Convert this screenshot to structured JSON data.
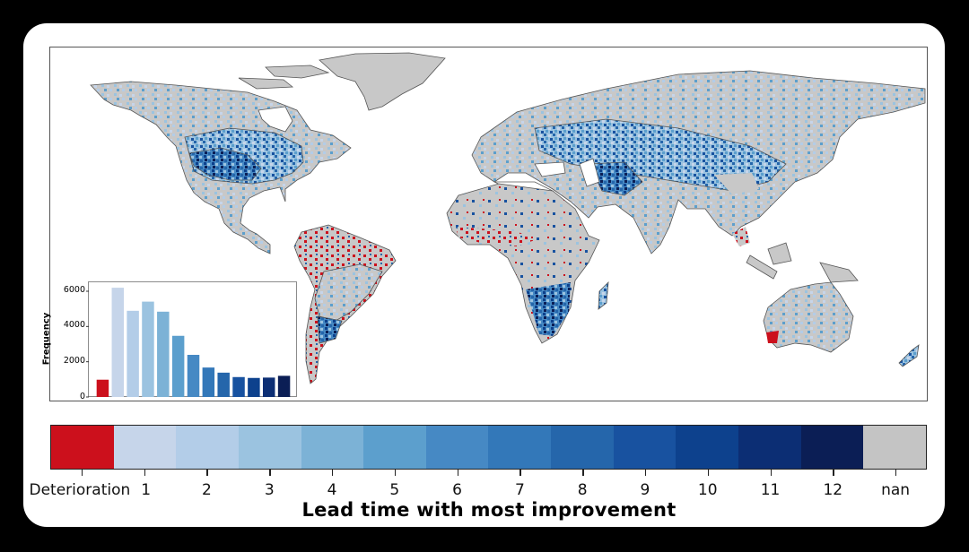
{
  "figure": {
    "colorbar_title": "Lead time with most improvement",
    "colorbar_categories": [
      "Deterioration",
      "1",
      "2",
      "3",
      "4",
      "5",
      "6",
      "7",
      "8",
      "9",
      "10",
      "11",
      "12",
      "nan"
    ],
    "colorbar_colors": [
      "#cc101c",
      "#c6d5ea",
      "#b3cde8",
      "#9bc3e0",
      "#7cb2d6",
      "#5c9fcd",
      "#4689c4",
      "#3378b9",
      "#2566ab",
      "#1852a0",
      "#0d418d",
      "#0c2e74",
      "#0b1e55",
      "#c4c4c4"
    ],
    "land_nan_color": "#c8c8c8",
    "inset": {
      "ylabel": "Frequency",
      "yticks": [
        "0",
        "2000",
        "4000",
        "6000"
      ]
    }
  },
  "chart_data": [
    {
      "type": "heatmap",
      "title": "",
      "description": "Global map of lead time with most improvement per grid cell",
      "legend": {
        "type": "categorical colorbar",
        "position": "bottom",
        "title": "Lead time with most improvement",
        "categories": [
          "Deterioration",
          "1",
          "2",
          "3",
          "4",
          "5",
          "6",
          "7",
          "8",
          "9",
          "10",
          "11",
          "12",
          "nan"
        ]
      },
      "annotations": [
        "Deterioration (red) concentrated in West Africa Sahel, northern South America, South/Southeast Asia, SW Australia",
        "Darker blues (long lead times) in central US, southern Africa, southern South America, Middle East"
      ]
    },
    {
      "type": "bar",
      "title": "",
      "xlabel": "",
      "ylabel": "Frequency",
      "categories": [
        "Deterioration",
        "1",
        "2",
        "3",
        "4",
        "5",
        "6",
        "7",
        "8",
        "9",
        "10",
        "11",
        "12"
      ],
      "values": [
        980,
        6200,
        4890,
        5410,
        4840,
        3470,
        2390,
        1670,
        1380,
        1130,
        1080,
        1100,
        1200
      ],
      "colors": [
        "#cc101c",
        "#c6d5ea",
        "#b3cde8",
        "#9bc3e0",
        "#7cb2d6",
        "#5c9fcd",
        "#4689c4",
        "#3378b9",
        "#2566ab",
        "#1852a0",
        "#0d418d",
        "#0c2e74",
        "#0b1e55"
      ],
      "ylim": [
        0,
        6500
      ],
      "yticks": [
        0,
        2000,
        4000,
        6000
      ],
      "grid": false,
      "legend_position": "none"
    }
  ]
}
